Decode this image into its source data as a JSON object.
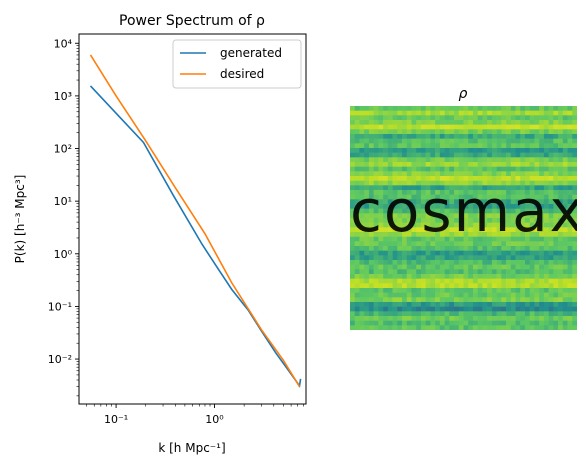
{
  "chart_data": [
    {
      "type": "line",
      "title": "Power Spectrum of ρ",
      "xlabel": "k [h Mpc⁻¹]",
      "ylabel": "P(k) [h⁻³ Mpc³]",
      "xscale": "log",
      "yscale": "log",
      "xlim": [
        0.042,
        8.5
      ],
      "ylim": [
        0.0014,
        15000
      ],
      "x_ticks": [
        {
          "value": 0.1,
          "label": "10⁻¹"
        },
        {
          "value": 1,
          "label": "10⁰"
        }
      ],
      "y_ticks": [
        {
          "value": 0.01,
          "label": "10⁻²"
        },
        {
          "value": 0.1,
          "label": "10⁻¹"
        },
        {
          "value": 1,
          "label": "10⁰"
        },
        {
          "value": 10,
          "label": "10¹"
        },
        {
          "value": 100,
          "label": "10²"
        },
        {
          "value": 1000,
          "label": "10³"
        },
        {
          "value": 10000,
          "label": "10⁴"
        }
      ],
      "legend_position": "top-right",
      "grid": false,
      "series": [
        {
          "name": "generated",
          "color": "#1f77b4",
          "x": [
            0.055,
            0.19,
            0.38,
            0.75,
            1.1,
            1.5,
            2.2,
            3.0,
            4.2,
            5.5,
            7.3,
            7.5
          ],
          "y": [
            1550,
            130,
            13,
            1.5,
            0.5,
            0.21,
            0.085,
            0.034,
            0.013,
            0.0065,
            0.0031,
            0.0042
          ]
        },
        {
          "name": "desired",
          "color": "#ff7f0e",
          "x": [
            0.055,
            0.1,
            0.2,
            0.4,
            0.8,
            1.5,
            3.0,
            5.0,
            7.3
          ],
          "y": [
            6000,
            1000,
            140,
            18,
            2.4,
            0.28,
            0.036,
            0.0095,
            0.003
          ]
        }
      ]
    },
    {
      "type": "heatmap",
      "title": "ρ",
      "image_text": "cosmax",
      "colormap": "viridis"
    }
  ]
}
